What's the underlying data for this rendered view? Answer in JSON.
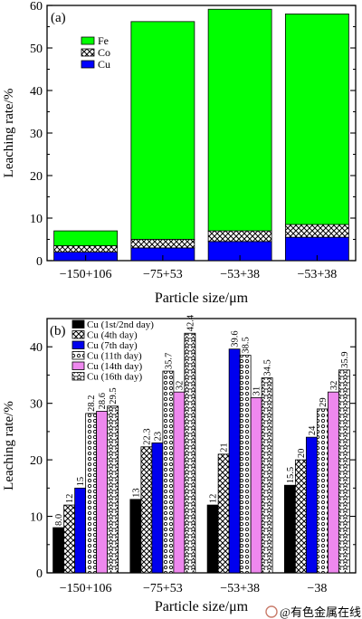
{
  "chart_data": [
    {
      "type": "bar",
      "stacked": true,
      "panel_label": "(a)",
      "categories": [
        "−150+106",
        "−75+53",
        "−53+38",
        "−53+38"
      ],
      "series": [
        {
          "name": "Cu",
          "color": "#0000ff",
          "pattern": "solid",
          "values": [
            2.0,
            3.0,
            4.5,
            5.5
          ]
        },
        {
          "name": "Co",
          "color": "#ffffff",
          "pattern": "crosshatch",
          "values": [
            1.5,
            2.0,
            2.5,
            3.0
          ]
        },
        {
          "name": "Fe",
          "color": "#00ff00",
          "pattern": "solid",
          "values": [
            3.5,
            51.2,
            52.1,
            49.5
          ]
        }
      ],
      "legend_order": [
        "Fe",
        "Co",
        "Cu"
      ],
      "legend_position": "top-left",
      "xlabel": "Particle size/μm",
      "ylabel": "Leaching rate/%",
      "ylim": [
        0,
        60
      ],
      "yticks": [
        0,
        10,
        20,
        30,
        40,
        50,
        60
      ],
      "grid": false
    },
    {
      "type": "bar",
      "grouped": true,
      "panel_label": "(b)",
      "categories": [
        "−150+106",
        "−75+53",
        "−53+38",
        "−38"
      ],
      "series": [
        {
          "name": "Cu (1st/2nd day)",
          "color": "#000000",
          "pattern": "solid",
          "values": [
            8.0,
            13,
            12,
            15.5
          ]
        },
        {
          "name": "Cu (4th day)",
          "color": "#ffffff",
          "pattern": "crosshatch",
          "values": [
            12,
            22.3,
            21,
            20
          ]
        },
        {
          "name": "Cu (7th day)",
          "color": "#0000ee",
          "pattern": "solid",
          "values": [
            15,
            23,
            39.6,
            24
          ]
        },
        {
          "name": "Cu (11th day)",
          "color": "#ffffff",
          "pattern": "dots",
          "values": [
            28.2,
            35.7,
            38.5,
            29
          ]
        },
        {
          "name": "Cu (14th day)",
          "color": "#ee88ee",
          "pattern": "solid",
          "values": [
            28.6,
            32,
            31,
            32
          ]
        },
        {
          "name": "Cu (16th day)",
          "color": "#ffffff",
          "pattern": "stars",
          "values": [
            29.5,
            42.4,
            34.5,
            35.9
          ]
        }
      ],
      "data_labels": [
        [
          "8.0",
          "12",
          "15",
          "28.2",
          "28.6",
          "29.5"
        ],
        [
          "13",
          "22.3",
          "23",
          "35.7",
          "32",
          "42.4"
        ],
        [
          "12",
          "21",
          "39.6",
          "38.5",
          "31",
          "34.5"
        ],
        [
          "15.5",
          "20",
          "24",
          "29",
          "32",
          "35.9"
        ]
      ],
      "legend_position": "top-left",
      "xlabel": "Particle size/μm",
      "ylabel": "Leaching rate/%",
      "ylim": [
        0,
        45
      ],
      "yticks": [
        0,
        10,
        20,
        30,
        40
      ],
      "grid": false
    }
  ],
  "watermark": {
    "text": "@有色金属在线"
  }
}
